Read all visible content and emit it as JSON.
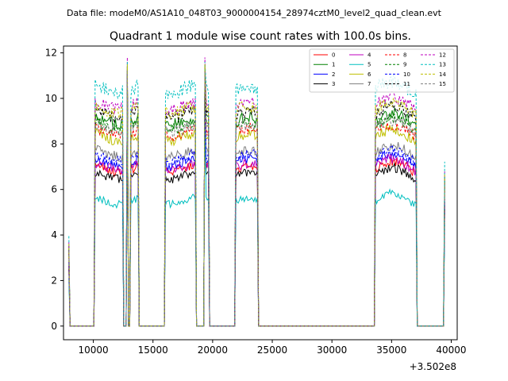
{
  "suptitle": "Data file: modeM0/AS1A10_048T03_9000004154_28974cztM0_level2_quad_clean.evt",
  "chart_data": {
    "type": "line",
    "title": "Quadrant 1 module wise count rates with 100.0s bins.",
    "xlabel": "",
    "ylabel": "",
    "x_offset_label": "+3.502e8",
    "xlim": [
      7500,
      40500
    ],
    "ylim": [
      -0.6,
      12.3
    ],
    "xticks": [
      10000,
      15000,
      20000,
      25000,
      30000,
      35000,
      40000
    ],
    "xtick_labels": [
      "10000",
      "15000",
      "20000",
      "25000",
      "30000",
      "35000",
      "40000"
    ],
    "yticks": [
      0,
      2,
      4,
      6,
      8,
      10,
      12
    ],
    "ytick_labels": [
      "0",
      "2",
      "4",
      "6",
      "8",
      "10",
      "12"
    ],
    "legend_position": "top-right",
    "active_intervals": [
      [
        10150,
        12450
      ],
      [
        13150,
        13750
      ],
      [
        16050,
        18550
      ],
      [
        19350,
        19650
      ],
      [
        21950,
        23750
      ],
      [
        33650,
        37050
      ]
    ],
    "spike_times": [
      7950,
      12850,
      19350,
      39450
    ],
    "series": [
      {
        "name": "0",
        "color": "#ff0000",
        "dash": "solid",
        "level": 6.9,
        "spike": 11.0
      },
      {
        "name": "1",
        "color": "#008000",
        "dash": "solid",
        "level": 9.0,
        "spike": 11.2
      },
      {
        "name": "2",
        "color": "#0000ff",
        "dash": "solid",
        "level": 7.2,
        "spike": 11.0
      },
      {
        "name": "3",
        "color": "#000000",
        "dash": "solid",
        "level": 6.6,
        "spike": 10.9
      },
      {
        "name": "4",
        "color": "#bf00bf",
        "dash": "solid",
        "level": 7.0,
        "spike": 11.1
      },
      {
        "name": "5",
        "color": "#00bfbf",
        "dash": "solid",
        "level": 5.5,
        "spike": 10.6
      },
      {
        "name": "6",
        "color": "#bfbf00",
        "dash": "solid",
        "level": 8.3,
        "spike": 11.2
      },
      {
        "name": "7",
        "color": "#808080",
        "dash": "solid",
        "level": 7.6,
        "spike": 11.0
      },
      {
        "name": "8",
        "color": "#ff0000",
        "dash": "dashed",
        "level": 8.5,
        "spike": 11.3
      },
      {
        "name": "9",
        "color": "#008000",
        "dash": "dashed",
        "level": 8.8,
        "spike": 11.3
      },
      {
        "name": "10",
        "color": "#0000ff",
        "dash": "dashed",
        "level": 7.4,
        "spike": 11.1
      },
      {
        "name": "11",
        "color": "#000000",
        "dash": "dashed",
        "level": 9.3,
        "spike": 11.4
      },
      {
        "name": "12",
        "color": "#bf00bf",
        "dash": "dashed",
        "level": 9.7,
        "spike": 11.8
      },
      {
        "name": "13",
        "color": "#00bfbf",
        "dash": "dashed",
        "level": 10.4,
        "spike": 11.6
      },
      {
        "name": "14",
        "color": "#bfbf00",
        "dash": "dashed",
        "level": 9.5,
        "spike": 11.5
      },
      {
        "name": "15",
        "color": "#808080",
        "dash": "dashed",
        "level": 8.7,
        "spike": 11.2
      }
    ]
  }
}
